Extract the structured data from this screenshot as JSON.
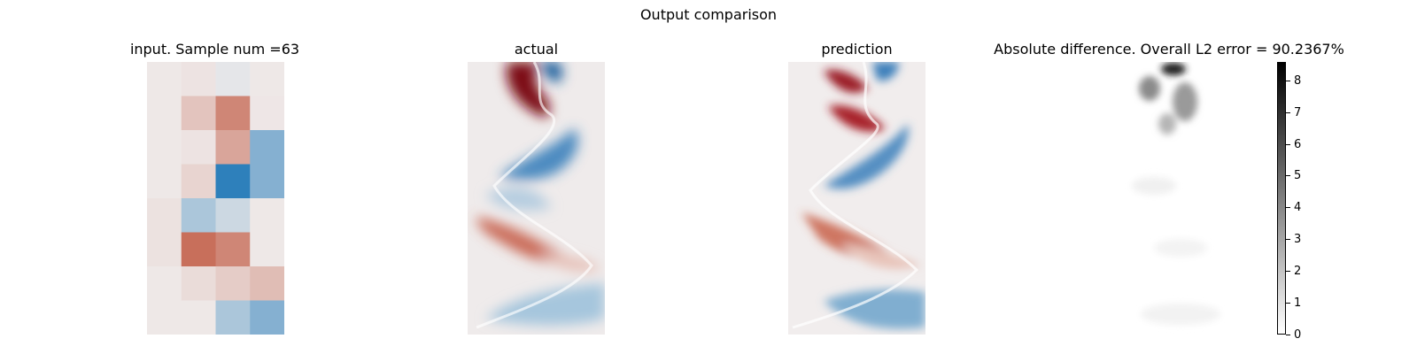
{
  "figure": {
    "suptitle": "Output comparison"
  },
  "chart_data": [
    {
      "type": "heatmap",
      "title": "input. Sample num =63",
      "rows": 8,
      "cols": 4,
      "colormap": "diverging blue-white-red",
      "values": [
        [
          0.02,
          0.05,
          -0.05,
          0.02
        ],
        [
          0.02,
          0.25,
          0.65,
          0.03
        ],
        [
          0.02,
          0.05,
          0.45,
          -0.55
        ],
        [
          0.02,
          0.15,
          -1.0,
          -0.55
        ],
        [
          0.06,
          -0.35,
          -0.18,
          0.02
        ],
        [
          0.06,
          0.8,
          0.65,
          0.02
        ],
        [
          0.02,
          0.1,
          0.2,
          0.3
        ],
        [
          0.02,
          0.02,
          -0.35,
          -0.55
        ]
      ]
    },
    {
      "type": "heatmap",
      "title": "actual",
      "colormap": "diverging blue-white-red",
      "description_of_structure": "vortex street: alternating red (positive) and blue (negative) vorticity bands"
    },
    {
      "type": "heatmap",
      "title": "prediction",
      "colormap": "diverging blue-white-red"
    },
    {
      "type": "heatmap",
      "title": "Absolute difference. Overall L2 error = 90.2367%",
      "colormap": "gray_r",
      "colorbar": {
        "range": [
          0,
          8.6
        ],
        "ticks": [
          "0",
          "1",
          "2",
          "3",
          "4",
          "5",
          "6",
          "7",
          "8"
        ]
      }
    }
  ]
}
